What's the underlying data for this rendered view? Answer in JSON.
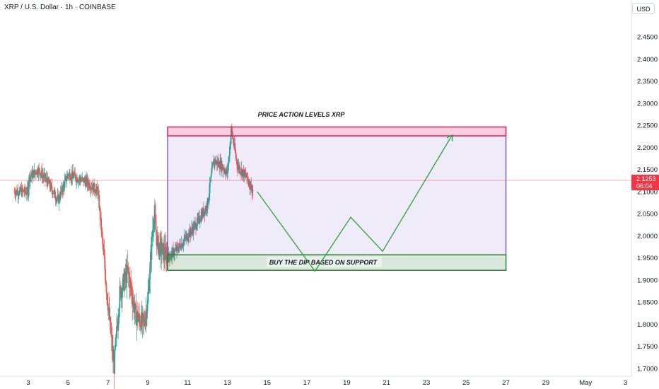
{
  "header": {
    "title": "XRP / U.S. Dollar · 1h · COINBASE"
  },
  "currency_button": "USD",
  "last_price": {
    "value": "2.1253",
    "countdown": "06:04",
    "color": "#f23645"
  },
  "colors": {
    "up": "#26a69a",
    "down": "#ef5350",
    "resistance": "#d81b60",
    "support": "#2e7d32",
    "range_border": "#673ab7",
    "projection": "#2e9e3e"
  },
  "annotations": {
    "range_title": "PRICE ACTION LEVELS XRP",
    "support_label": "BUY THE DIP BASED ON SUPPORT"
  },
  "chart_data": {
    "type": "candlestick",
    "title": "XRP / U.S. Dollar · 1h · COINBASE",
    "xlabel": "",
    "ylabel": "",
    "x_ticks": [
      "3",
      "5",
      "7",
      "9",
      "11",
      "13",
      "15",
      "17",
      "19",
      "21",
      "23",
      "25",
      "27",
      "29",
      "May",
      "3"
    ],
    "y_ticks": [
      "1.7000",
      "1.7500",
      "1.8000",
      "1.8500",
      "1.9000",
      "1.9500",
      "2.0000",
      "2.0500",
      "2.1000",
      "2.1500",
      "2.2000",
      "2.2500",
      "2.3000",
      "2.3500",
      "2.4000",
      "2.4500"
    ],
    "ylim": [
      1.69,
      2.5
    ],
    "grid": false,
    "price_path": [
      [
        "3",
        2.13
      ],
      [
        "3.5",
        2.15
      ],
      [
        "4",
        2.12
      ],
      [
        "4.5",
        2.08
      ],
      [
        "5",
        2.14
      ],
      [
        "5.5",
        2.13
      ],
      [
        "6",
        2.12
      ],
      [
        "6.5",
        2.1
      ],
      [
        "7",
        1.85
      ],
      [
        "7.3",
        1.7
      ],
      [
        "7.6",
        1.87
      ],
      [
        "8",
        1.92
      ],
      [
        "8.4",
        1.82
      ],
      [
        "8.8",
        1.8
      ],
      [
        "9",
        1.85
      ],
      [
        "9.3",
        2.05
      ],
      [
        "9.5",
        1.98
      ],
      [
        "10",
        1.95
      ],
      [
        "10.5",
        1.97
      ],
      [
        "11",
        2.0
      ],
      [
        "11.5",
        2.03
      ],
      [
        "12",
        2.07
      ],
      [
        "12.3",
        2.17
      ],
      [
        "12.7",
        2.16
      ],
      [
        "13",
        2.14
      ],
      [
        "13.2",
        2.24
      ],
      [
        "13.5",
        2.16
      ],
      [
        "14",
        2.13
      ],
      [
        "14.3",
        2.1
      ]
    ],
    "resistance_zone": [
      2.226,
      2.246
    ],
    "support_zone": [
      1.922,
      1.957
    ],
    "range_box": {
      "x": [
        "10",
        "27"
      ],
      "y": [
        1.957,
        2.226
      ]
    },
    "projection": [
      [
        "14.5",
        2.1
      ],
      [
        "17.4",
        1.92
      ],
      [
        "19.2",
        2.042
      ],
      [
        "20.8",
        1.965
      ],
      [
        "24.3",
        2.228
      ]
    ]
  }
}
